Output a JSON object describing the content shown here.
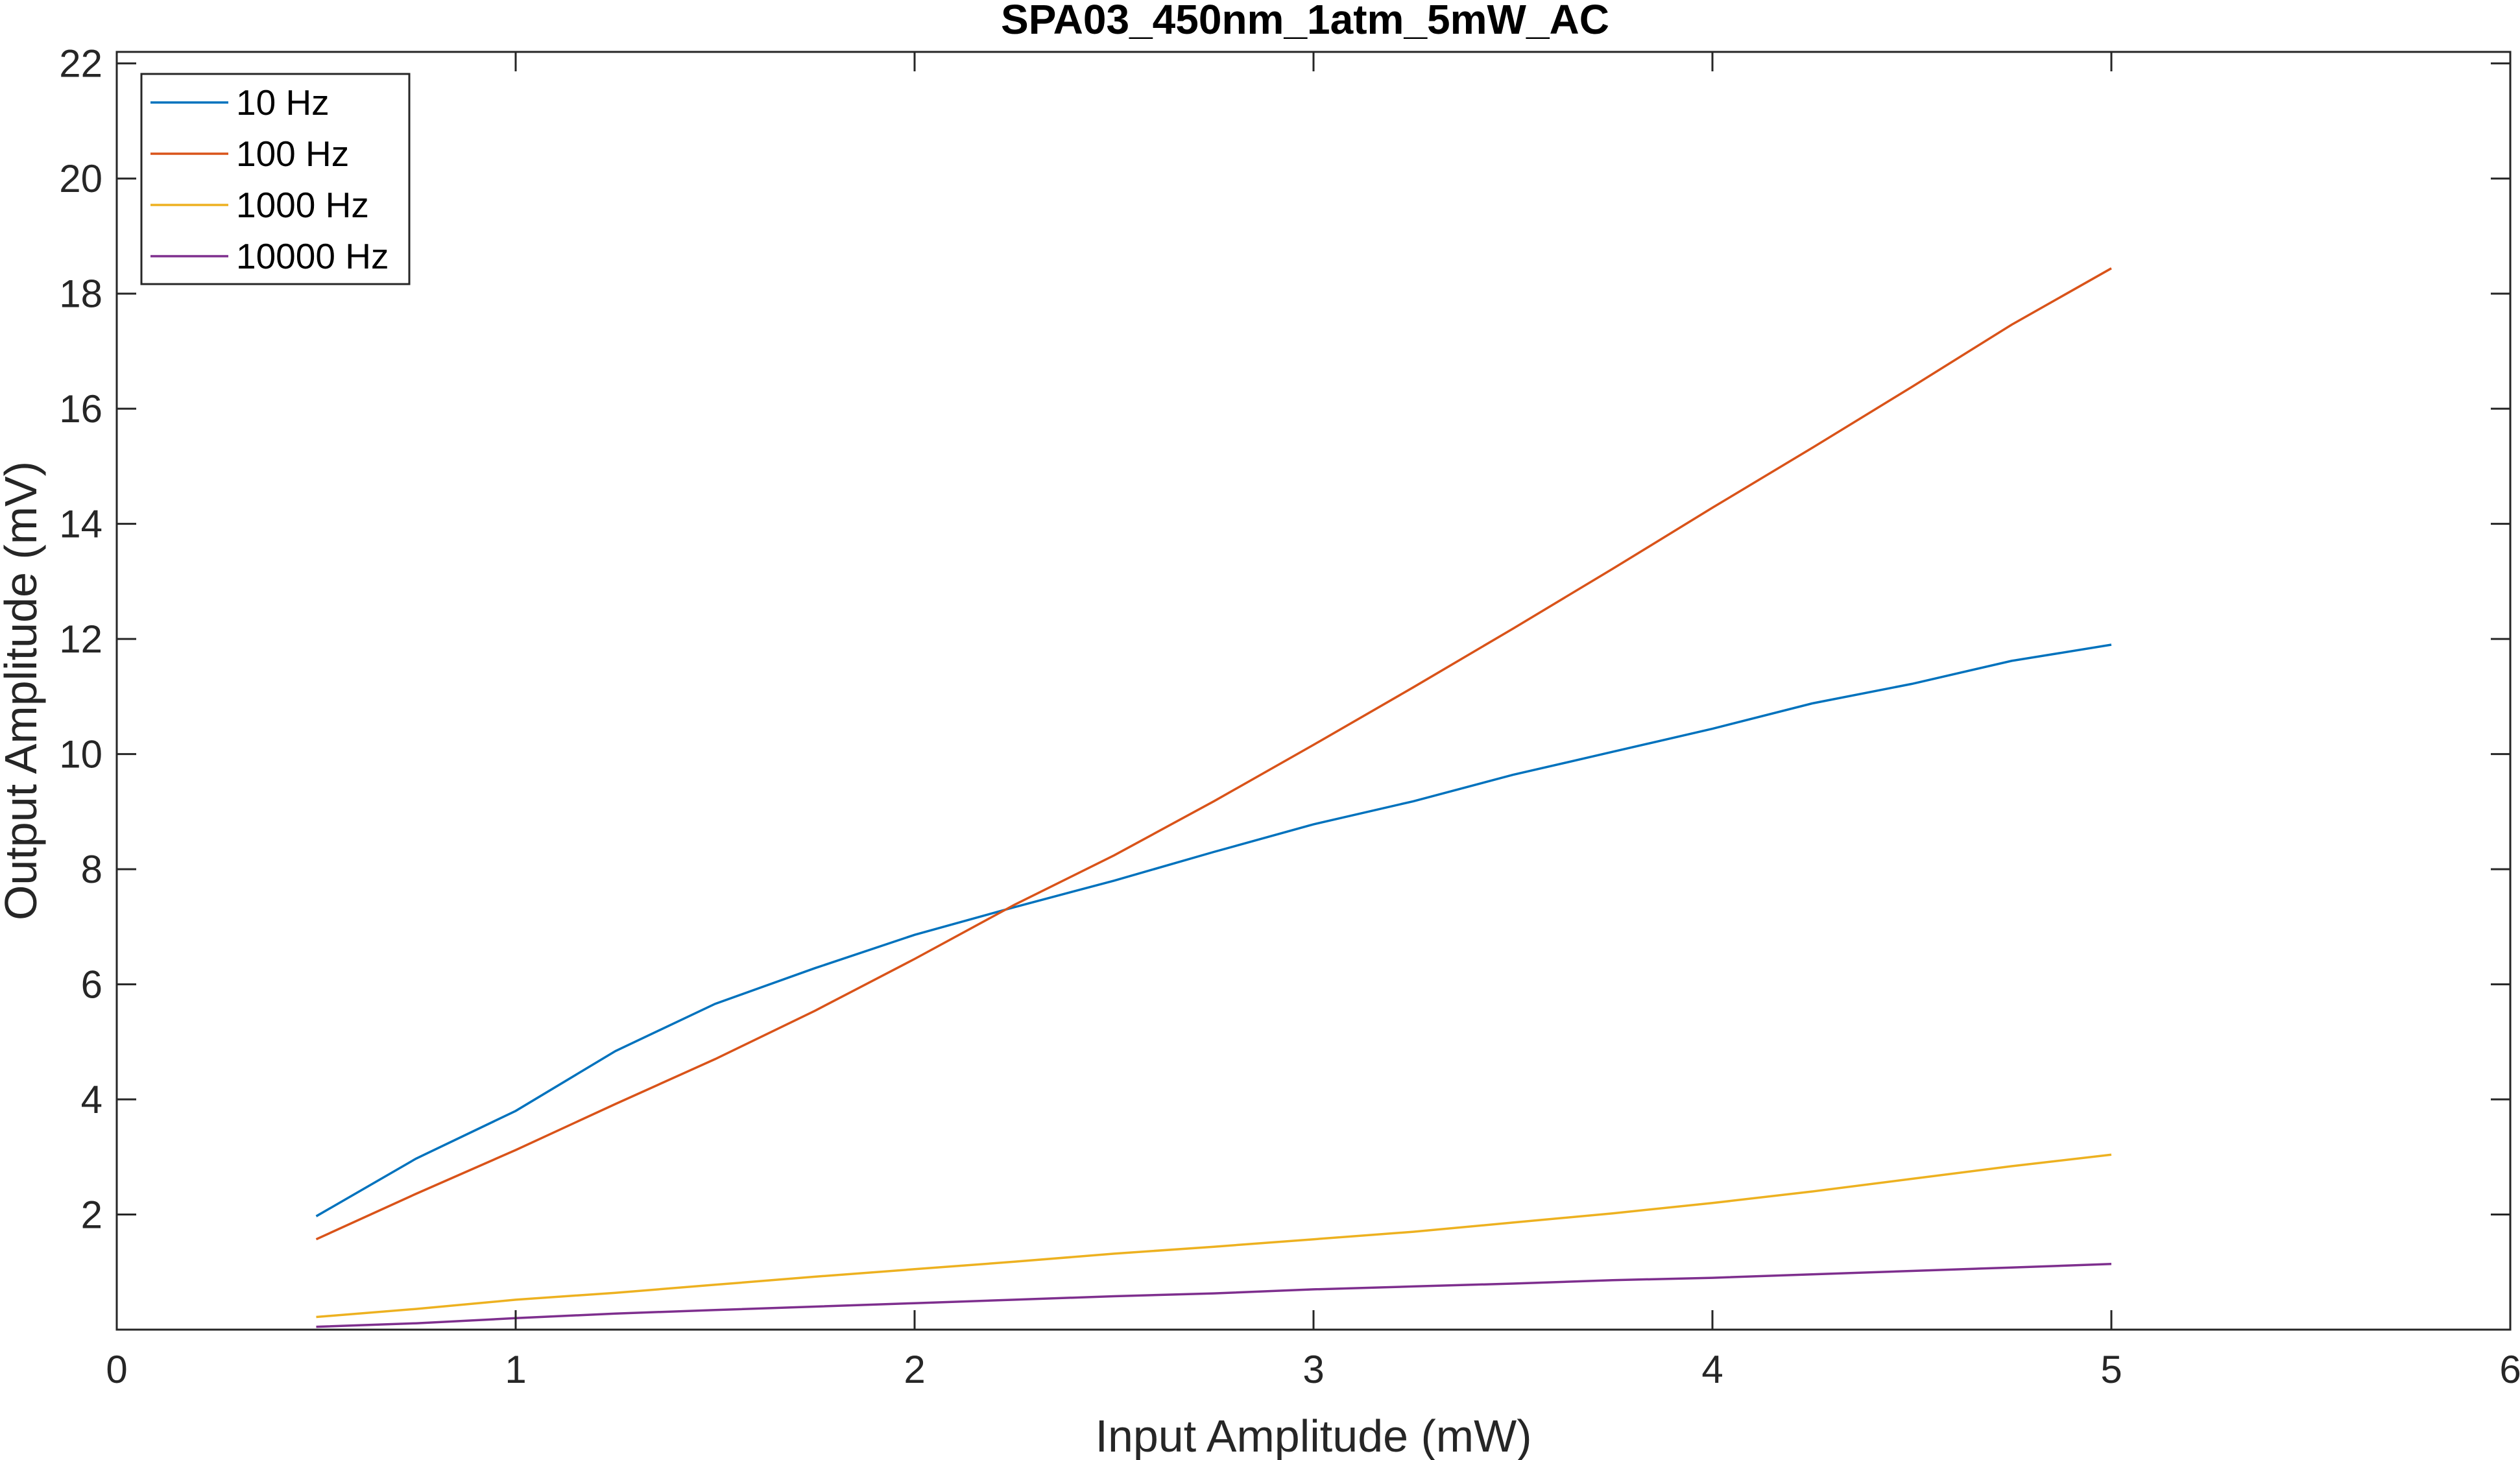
{
  "chart_data": {
    "type": "line",
    "title": "SPA03_450nm_1atm_5mW_AC",
    "xlabel": "Input Amplitude (mW)",
    "ylabel": "Output Amplitude (mV)",
    "xlim": [
      0,
      6
    ],
    "ylim": [
      0,
      22.2
    ],
    "xticks": [
      0,
      1,
      2,
      3,
      4,
      5,
      6
    ],
    "yticks": [
      2,
      4,
      6,
      8,
      10,
      12,
      14,
      16,
      18,
      20,
      22
    ],
    "grid": false,
    "legend_position": "top-left",
    "x": [
      0.5,
      0.75,
      1,
      1.25,
      1.5,
      1.75,
      2,
      2.25,
      2.5,
      2.75,
      3,
      3.25,
      3.5,
      3.75,
      4,
      4.25,
      4.5,
      4.75,
      5
    ],
    "series": [
      {
        "name": "10 Hz",
        "color": "#0072BD",
        "values": [
          1.97,
          2.97,
          3.8,
          4.84,
          5.66,
          6.28,
          6.86,
          7.34,
          7.8,
          8.3,
          8.78,
          9.18,
          9.64,
          10.04,
          10.44,
          10.88,
          11.22,
          11.62,
          11.9
        ]
      },
      {
        "name": "100 Hz",
        "color": "#D95319",
        "values": [
          1.57,
          2.36,
          3.12,
          3.92,
          4.7,
          5.54,
          6.44,
          7.38,
          8.24,
          9.18,
          10.16,
          11.16,
          12.18,
          13.22,
          14.28,
          15.32,
          16.38,
          17.46,
          18.44
        ]
      },
      {
        "name": "1000 Hz",
        "color": "#EDB120",
        "values": [
          0.22,
          0.36,
          0.52,
          0.64,
          0.78,
          0.92,
          1.05,
          1.18,
          1.32,
          1.44,
          1.57,
          1.7,
          1.86,
          2.02,
          2.2,
          2.4,
          2.62,
          2.84,
          3.04
        ]
      },
      {
        "name": "10000 Hz",
        "color": "#7E2F8E",
        "values": [
          0.05,
          0.11,
          0.2,
          0.28,
          0.34,
          0.4,
          0.46,
          0.52,
          0.58,
          0.63,
          0.7,
          0.75,
          0.8,
          0.86,
          0.9,
          0.96,
          1.02,
          1.08,
          1.14
        ]
      }
    ]
  }
}
